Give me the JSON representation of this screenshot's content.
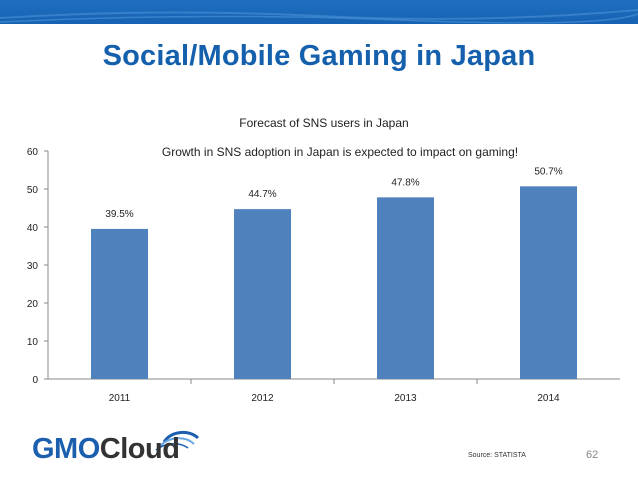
{
  "slide": {
    "title": "Social/Mobile Gaming in Japan",
    "source": "Source: STATISTA",
    "page_number": "62",
    "logo": {
      "brand": "GMO",
      "product": "Cloud"
    }
  },
  "colors": {
    "bar": "#4f81bd",
    "title": "#1560ad",
    "header_bar": "#1762b2"
  },
  "chart_data": {
    "type": "bar",
    "title": "Forecast  of SNS users in Japan",
    "subtitle": "Growth in SNS adoption in Japan is expected to impact on gaming!",
    "categories": [
      "2011",
      "2012",
      "2013",
      "2014"
    ],
    "values": [
      39.5,
      44.7,
      47.8,
      50.7
    ],
    "data_labels": [
      "39.5%",
      "44.7%",
      "47.8%",
      "50.7%"
    ],
    "ylim": [
      0,
      60
    ],
    "yticks": [
      0,
      10,
      20,
      30,
      40,
      50,
      60
    ],
    "xlabel": "",
    "ylabel": "",
    "grid": false,
    "legend": "none"
  }
}
